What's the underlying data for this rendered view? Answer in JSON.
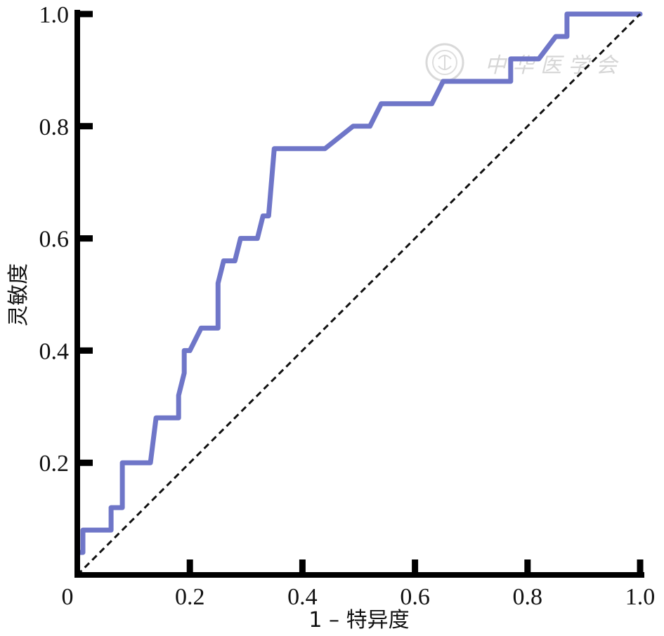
{
  "chart_data": {
    "type": "line",
    "xlabel": "1 – 特异度",
    "ylabel": "灵敏度",
    "xlim": [
      0,
      1
    ],
    "ylim": [
      0,
      1
    ],
    "x_ticks": [
      0,
      0.2,
      0.4,
      0.6,
      0.8,
      1.0
    ],
    "x_tick_labels": [
      "0",
      "0.2",
      "0.4",
      "0.6",
      "0.8",
      "1.0"
    ],
    "y_ticks": [
      0.2,
      0.4,
      0.6,
      0.8,
      1.0
    ],
    "y_tick_labels": [
      "0.2",
      "0.4",
      "0.6",
      "0.8",
      "1.0"
    ],
    "grid": false,
    "legend": "none",
    "series": [
      {
        "color": "#6f76c8",
        "style": "solid",
        "points": [
          [
            0.0,
            0.0
          ],
          [
            0.0,
            0.04
          ],
          [
            0.01,
            0.04
          ],
          [
            0.01,
            0.08
          ],
          [
            0.06,
            0.08
          ],
          [
            0.06,
            0.12
          ],
          [
            0.08,
            0.12
          ],
          [
            0.08,
            0.2
          ],
          [
            0.13,
            0.2
          ],
          [
            0.14,
            0.28
          ],
          [
            0.18,
            0.28
          ],
          [
            0.18,
            0.32
          ],
          [
            0.19,
            0.36
          ],
          [
            0.19,
            0.4
          ],
          [
            0.2,
            0.4
          ],
          [
            0.22,
            0.44
          ],
          [
            0.25,
            0.44
          ],
          [
            0.25,
            0.52
          ],
          [
            0.26,
            0.56
          ],
          [
            0.28,
            0.56
          ],
          [
            0.29,
            0.6
          ],
          [
            0.32,
            0.6
          ],
          [
            0.33,
            0.64
          ],
          [
            0.34,
            0.64
          ],
          [
            0.35,
            0.76
          ],
          [
            0.44,
            0.76
          ],
          [
            0.49,
            0.8
          ],
          [
            0.52,
            0.8
          ],
          [
            0.54,
            0.84
          ],
          [
            0.63,
            0.84
          ],
          [
            0.65,
            0.88
          ],
          [
            0.77,
            0.88
          ],
          [
            0.77,
            0.92
          ],
          [
            0.82,
            0.92
          ],
          [
            0.85,
            0.96
          ],
          [
            0.87,
            0.96
          ],
          [
            0.87,
            1.0
          ],
          [
            1.0,
            1.0
          ]
        ]
      },
      {
        "color": "#111111",
        "style": "dashed",
        "points": [
          [
            0,
            0
          ],
          [
            1,
            1
          ]
        ]
      }
    ]
  }
}
